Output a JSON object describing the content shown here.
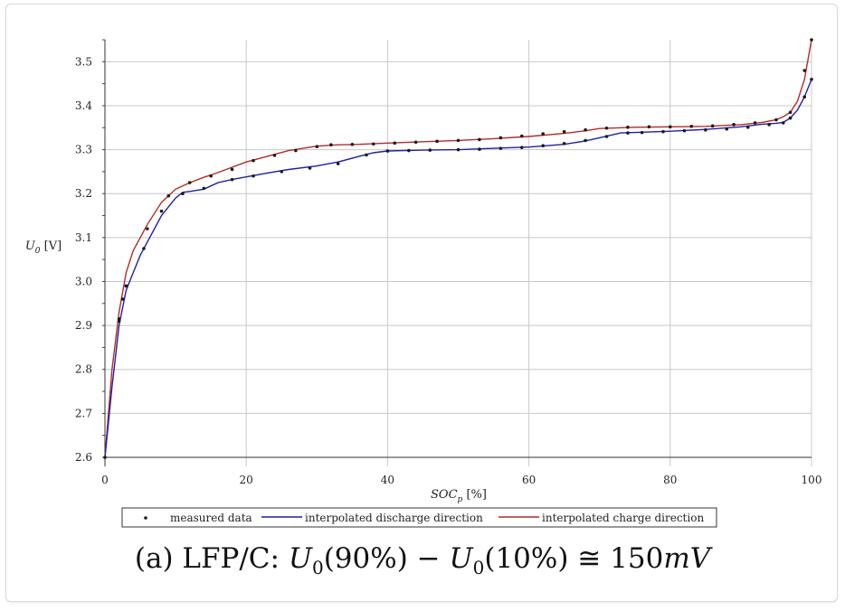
{
  "chart_data": {
    "type": "line",
    "xlabel": "SOC_p [%]",
    "ylabel": "U_0 [V]",
    "xlim": [
      0,
      100
    ],
    "ylim": [
      2.6,
      3.55
    ],
    "xticks": [
      "0",
      "20",
      "40",
      "60",
      "80",
      "100"
    ],
    "yticks": [
      "2.6",
      "2.7",
      "2.8",
      "2.9",
      "3.0",
      "3.1",
      "3.2",
      "3.3",
      "3.4",
      "3.5"
    ],
    "grid": true,
    "legend_position": "bottom",
    "legend": [
      "measured data",
      "interpolated discharge direction",
      "interpolated charge direction"
    ],
    "series": [
      {
        "name": "interpolated discharge direction",
        "color": "#1f1fa8",
        "x": [
          0,
          1,
          2,
          3,
          4,
          5,
          6,
          8,
          10,
          11,
          12,
          14,
          16,
          18,
          20,
          23,
          26,
          30,
          33,
          36,
          38,
          40,
          45,
          50,
          55,
          60,
          65,
          68,
          70,
          73,
          75,
          80,
          85,
          90,
          93,
          95,
          96,
          97,
          98,
          99,
          100
        ],
        "y": [
          2.6,
          2.76,
          2.9,
          2.98,
          3.02,
          3.06,
          3.09,
          3.15,
          3.19,
          3.203,
          3.205,
          3.21,
          3.225,
          3.232,
          3.238,
          3.247,
          3.255,
          3.263,
          3.272,
          3.285,
          3.293,
          3.297,
          3.299,
          3.3,
          3.303,
          3.306,
          3.312,
          3.32,
          3.327,
          3.338,
          3.339,
          3.342,
          3.346,
          3.352,
          3.358,
          3.36,
          3.362,
          3.372,
          3.39,
          3.42,
          3.46
        ]
      },
      {
        "name": "interpolated charge direction",
        "color": "#b52a2a",
        "x": [
          0,
          1,
          2,
          3,
          4,
          5,
          6,
          8,
          10,
          12,
          14,
          16,
          18,
          20,
          23,
          26,
          30,
          33,
          36,
          40,
          45,
          50,
          55,
          60,
          65,
          68,
          70,
          75,
          80,
          85,
          90,
          93,
          95,
          96,
          97,
          98,
          99,
          100
        ],
        "y": [
          2.6,
          2.8,
          2.93,
          3.02,
          3.07,
          3.1,
          3.13,
          3.18,
          3.21,
          3.225,
          3.237,
          3.248,
          3.26,
          3.272,
          3.285,
          3.298,
          3.308,
          3.311,
          3.312,
          3.315,
          3.318,
          3.321,
          3.325,
          3.33,
          3.337,
          3.343,
          3.348,
          3.351,
          3.352,
          3.353,
          3.357,
          3.362,
          3.368,
          3.375,
          3.385,
          3.41,
          3.46,
          3.55
        ]
      },
      {
        "name": "measured data",
        "color": "#1a1a1a",
        "x": [
          0,
          2,
          2.5,
          3,
          5.5,
          8,
          11,
          14,
          18,
          21,
          25,
          29,
          33,
          37,
          40,
          43,
          46,
          50,
          53,
          56,
          59,
          62,
          65,
          68,
          71,
          74,
          76,
          79,
          82,
          85,
          88,
          91,
          94,
          96,
          97,
          99,
          100,
          2,
          3,
          6,
          9,
          12,
          15,
          18,
          21,
          24,
          27,
          30,
          32,
          35,
          38,
          41,
          44,
          47,
          50,
          53,
          56,
          59,
          62,
          65,
          68,
          71,
          74,
          77,
          80,
          83,
          86,
          89,
          92,
          95,
          97,
          99,
          100
        ],
        "y": [
          2.6,
          2.91,
          2.96,
          2.99,
          3.075,
          3.16,
          3.2,
          3.212,
          3.232,
          3.24,
          3.25,
          3.258,
          3.268,
          3.288,
          3.297,
          3.298,
          3.299,
          3.3,
          3.301,
          3.303,
          3.305,
          3.309,
          3.314,
          3.321,
          3.33,
          3.338,
          3.339,
          3.341,
          3.343,
          3.345,
          3.347,
          3.351,
          3.357,
          3.361,
          3.372,
          3.42,
          3.46,
          2.915,
          2.99,
          3.12,
          3.195,
          3.225,
          3.24,
          3.255,
          3.275,
          3.287,
          3.298,
          3.307,
          3.311,
          3.312,
          3.313,
          3.315,
          3.317,
          3.319,
          3.321,
          3.323,
          3.327,
          3.331,
          3.336,
          3.341,
          3.345,
          3.349,
          3.351,
          3.352,
          3.352,
          3.353,
          3.354,
          3.357,
          3.361,
          3.368,
          3.385,
          3.48,
          3.55
        ]
      }
    ]
  },
  "caption": {
    "prefix": "(a) LFP/C: ",
    "u1": "U",
    "sub1": "0",
    "arg1": "(90%) − ",
    "u2": "U",
    "sub2": "0",
    "arg2": "(10%) ≅ 150",
    "unit": "mV"
  }
}
